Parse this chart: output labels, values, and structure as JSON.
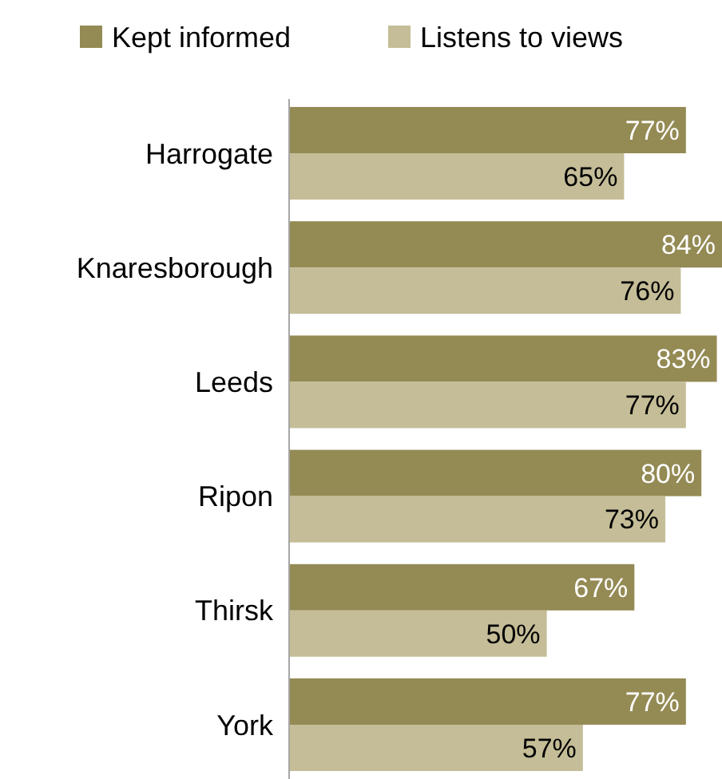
{
  "chart_data": {
    "type": "bar",
    "orientation": "horizontal",
    "categories": [
      "Harrogate",
      "Knaresborough",
      "Leeds",
      "Ripon",
      "Thirsk",
      "York"
    ],
    "series": [
      {
        "name": "Kept informed",
        "color": "#948a54",
        "values": [
          77,
          84,
          83,
          80,
          67,
          77
        ],
        "value_labels": [
          "77%",
          "84%",
          "83%",
          "80%",
          "67%",
          "77%"
        ]
      },
      {
        "name": "Listens to views",
        "color": "#c4bd97",
        "values": [
          65,
          76,
          77,
          73,
          50,
          57
        ],
        "value_labels": [
          "65%",
          "76%",
          "77%",
          "73%",
          "50%",
          "57%"
        ]
      }
    ],
    "legend": "top"
  }
}
